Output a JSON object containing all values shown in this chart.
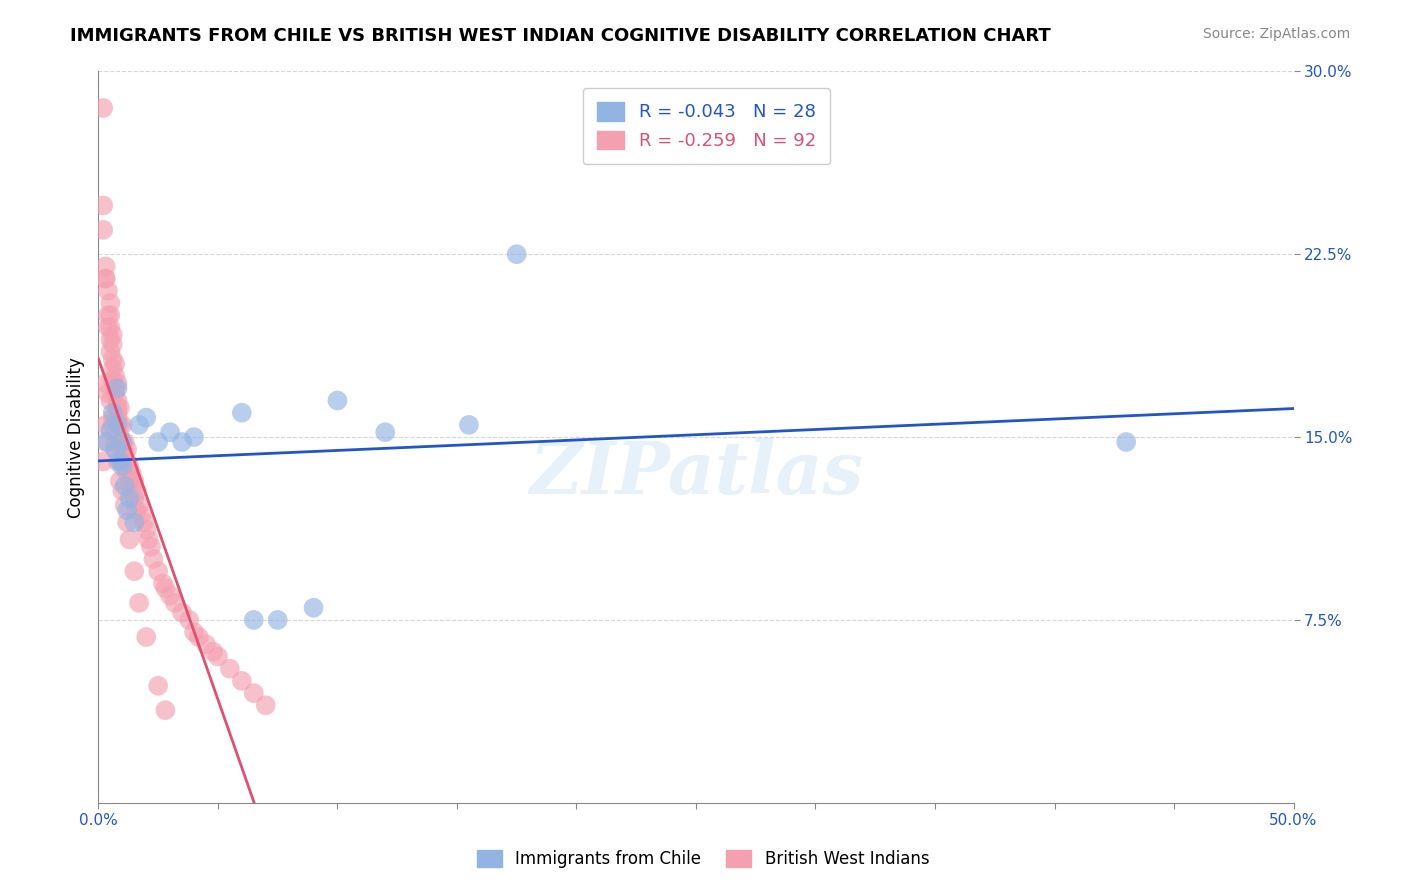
{
  "title": "IMMIGRANTS FROM CHILE VS BRITISH WEST INDIAN COGNITIVE DISABILITY CORRELATION CHART",
  "source": "Source: ZipAtlas.com",
  "xlabel": "",
  "ylabel": "Cognitive Disability",
  "xlim": [
    0.0,
    0.5
  ],
  "ylim": [
    0.0,
    0.3
  ],
  "yticks": [
    0.075,
    0.15,
    0.225,
    0.3
  ],
  "ytick_labels": [
    "7.5%",
    "15.0%",
    "22.5%",
    "30.0%"
  ],
  "xticks": [
    0.0,
    0.05,
    0.1,
    0.15,
    0.2,
    0.25,
    0.3,
    0.35,
    0.4,
    0.45,
    0.5
  ],
  "xtick_labels": [
    "0.0%",
    "",
    "",
    "",
    "",
    "",
    "",
    "",
    "",
    "",
    "50.0%"
  ],
  "chile_R": -0.043,
  "chile_N": 28,
  "bwi_R": -0.259,
  "bwi_N": 92,
  "chile_color": "#92b4e3",
  "bwi_color": "#f4a0b0",
  "chile_line_color": "#2255cc",
  "bwi_line_color": "#e05070",
  "background_color": "#ffffff",
  "watermark": "ZIPatlas",
  "chile_x": [
    0.003,
    0.005,
    0.006,
    0.007,
    0.008,
    0.008,
    0.009,
    0.01,
    0.01,
    0.011,
    0.012,
    0.013,
    0.015,
    0.017,
    0.02,
    0.025,
    0.03,
    0.035,
    0.04,
    0.06,
    0.065,
    0.075,
    0.09,
    0.1,
    0.12,
    0.155,
    0.175,
    0.43
  ],
  "chile_y": [
    0.148,
    0.153,
    0.16,
    0.145,
    0.155,
    0.17,
    0.14,
    0.148,
    0.138,
    0.13,
    0.12,
    0.125,
    0.115,
    0.155,
    0.158,
    0.148,
    0.152,
    0.148,
    0.15,
    0.16,
    0.075,
    0.075,
    0.08,
    0.165,
    0.152,
    0.155,
    0.225,
    0.148
  ],
  "bwi_x": [
    0.002,
    0.002,
    0.002,
    0.003,
    0.003,
    0.003,
    0.004,
    0.004,
    0.004,
    0.005,
    0.005,
    0.005,
    0.005,
    0.005,
    0.006,
    0.006,
    0.006,
    0.006,
    0.006,
    0.007,
    0.007,
    0.007,
    0.007,
    0.008,
    0.008,
    0.008,
    0.008,
    0.009,
    0.009,
    0.009,
    0.01,
    0.01,
    0.01,
    0.01,
    0.011,
    0.011,
    0.012,
    0.012,
    0.012,
    0.013,
    0.013,
    0.014,
    0.014,
    0.015,
    0.015,
    0.016,
    0.016,
    0.017,
    0.018,
    0.019,
    0.02,
    0.021,
    0.022,
    0.023,
    0.025,
    0.027,
    0.028,
    0.03,
    0.032,
    0.035,
    0.038,
    0.04,
    0.042,
    0.045,
    0.048,
    0.05,
    0.055,
    0.06,
    0.065,
    0.07,
    0.002,
    0.003,
    0.004,
    0.005,
    0.006,
    0.007,
    0.008,
    0.003,
    0.004,
    0.006,
    0.007,
    0.008,
    0.009,
    0.01,
    0.011,
    0.012,
    0.013,
    0.015,
    0.017,
    0.02,
    0.025,
    0.028
  ],
  "bwi_y": [
    0.285,
    0.245,
    0.235,
    0.215,
    0.22,
    0.215,
    0.21,
    0.2,
    0.195,
    0.205,
    0.2,
    0.19,
    0.195,
    0.185,
    0.192,
    0.188,
    0.182,
    0.178,
    0.173,
    0.18,
    0.175,
    0.17,
    0.168,
    0.172,
    0.165,
    0.16,
    0.158,
    0.162,
    0.155,
    0.15,
    0.155,
    0.148,
    0.145,
    0.14,
    0.148,
    0.143,
    0.145,
    0.14,
    0.135,
    0.138,
    0.132,
    0.135,
    0.128,
    0.132,
    0.125,
    0.128,
    0.12,
    0.122,
    0.118,
    0.115,
    0.112,
    0.108,
    0.105,
    0.1,
    0.095,
    0.09,
    0.088,
    0.085,
    0.082,
    0.078,
    0.075,
    0.07,
    0.068,
    0.065,
    0.062,
    0.06,
    0.055,
    0.05,
    0.045,
    0.04,
    0.14,
    0.155,
    0.148,
    0.165,
    0.155,
    0.148,
    0.162,
    0.172,
    0.168,
    0.158,
    0.145,
    0.14,
    0.132,
    0.128,
    0.122,
    0.115,
    0.108,
    0.095,
    0.082,
    0.068,
    0.048,
    0.038
  ]
}
